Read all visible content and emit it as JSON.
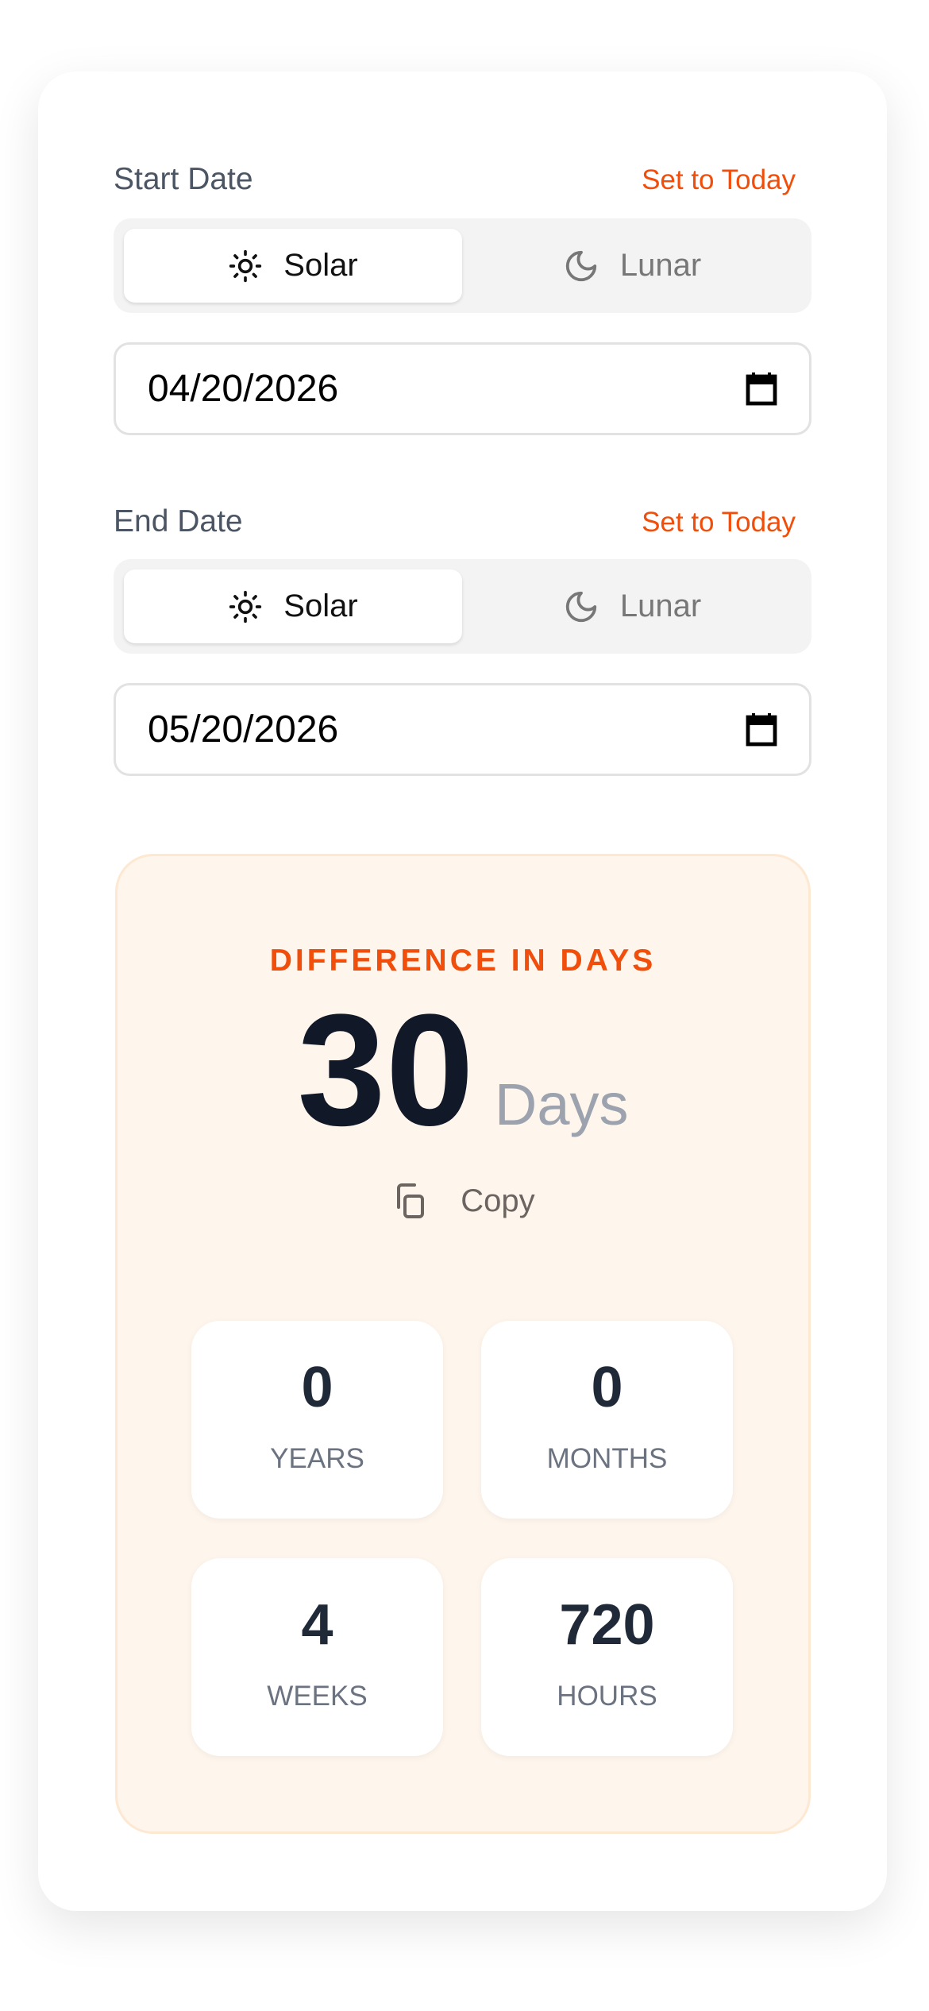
{
  "start": {
    "label": "Start Date",
    "set_today": "Set to Today",
    "modes": [
      "Solar",
      "Lunar"
    ],
    "selected_mode": "Solar",
    "value": "04/20/2026"
  },
  "end": {
    "label": "End Date",
    "set_today": "Set to Today",
    "modes": [
      "Solar",
      "Lunar"
    ],
    "selected_mode": "Solar",
    "value": "05/20/2026"
  },
  "result": {
    "title": "DIFFERENCE IN DAYS",
    "days": "30",
    "unit": "Days",
    "copy_label": "Copy",
    "stats": [
      {
        "value": "0",
        "label": "YEARS"
      },
      {
        "value": "0",
        "label": "MONTHS"
      },
      {
        "value": "4",
        "label": "WEEKS"
      },
      {
        "value": "720",
        "label": "HOURS"
      }
    ]
  },
  "colors": {
    "accent": "#f04e0a",
    "result_bg": "#fef5ec"
  }
}
